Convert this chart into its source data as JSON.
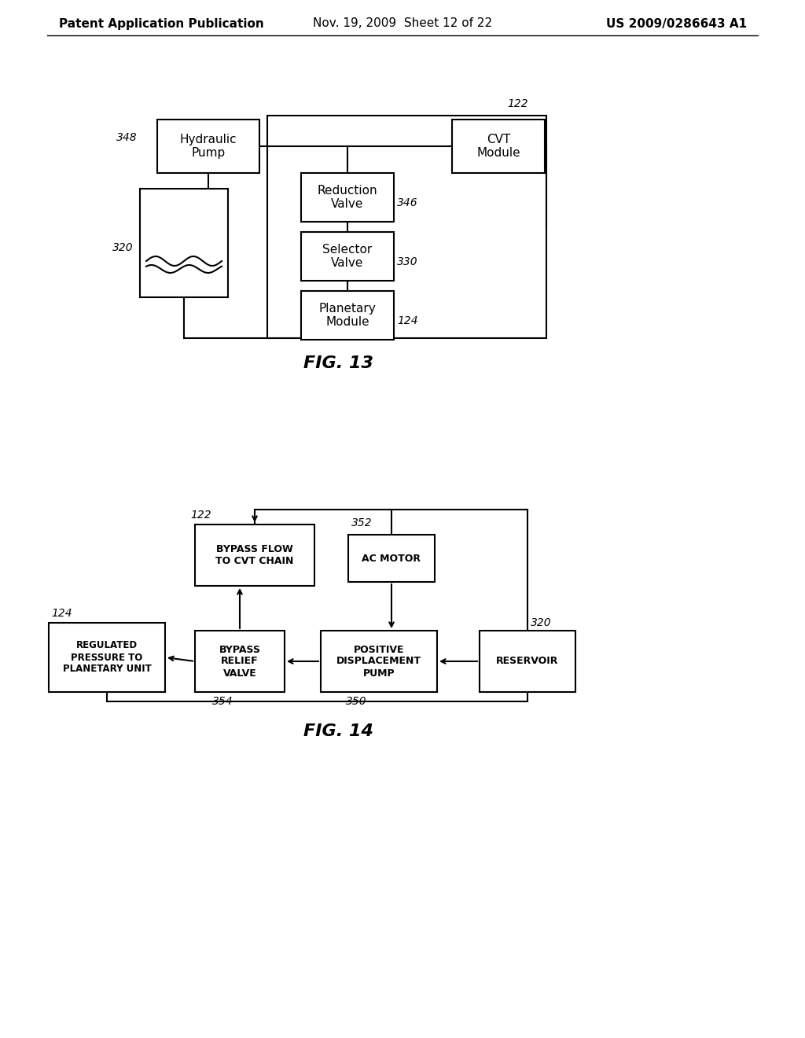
{
  "header": {
    "left": "Patent Application Publication",
    "center": "Nov. 19, 2009  Sheet 12 of 22",
    "right": "US 2009/0286643 A1",
    "font_size": 11
  },
  "bg_color": "#ffffff"
}
